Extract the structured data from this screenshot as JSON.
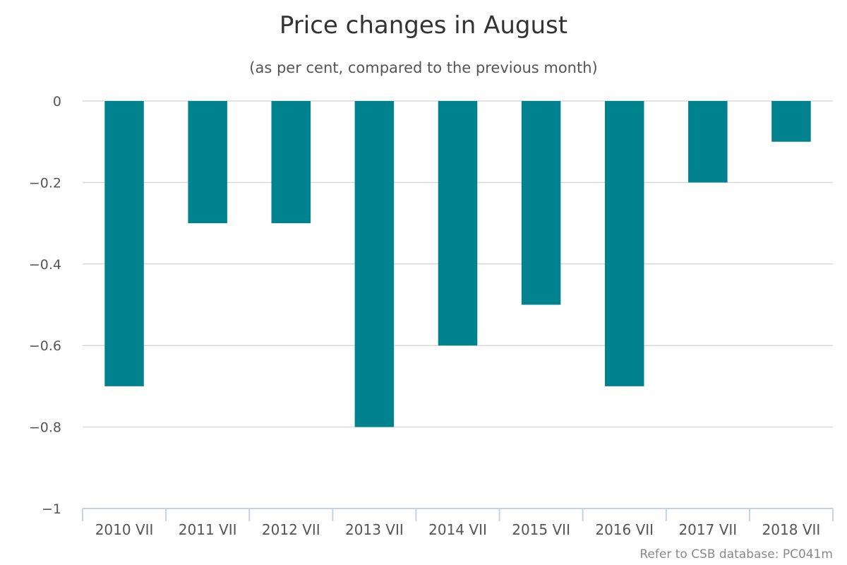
{
  "chart_data": {
    "type": "bar",
    "title": "Price changes in August",
    "subtitle": "(as per cent, compared to the previous month)",
    "categories": [
      "2010 VII",
      "2011 VII",
      "2012 VII",
      "2013 VII",
      "2014 VII",
      "2015 VII",
      "2016 VII",
      "2017 VII",
      "2018 VII"
    ],
    "values": [
      -0.7,
      -0.3,
      -0.3,
      -0.8,
      -0.6,
      -0.5,
      -0.7,
      -0.2,
      -0.1
    ],
    "yticks": [
      0,
      -0.2,
      -0.4,
      -0.6,
      -0.8,
      -1
    ],
    "ytick_labels": [
      "0",
      "−0.2",
      "−0.4",
      "−0.6",
      "−0.8",
      "−1"
    ],
    "ylim": [
      -1,
      0
    ],
    "grid": true,
    "legend": "none",
    "bar_color": "#00838F",
    "credits": "Refer to CSB database: PC041m"
  }
}
